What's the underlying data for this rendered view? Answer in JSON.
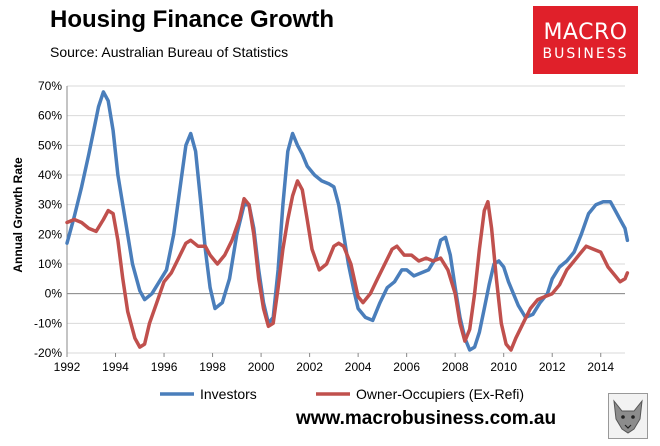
{
  "header": {
    "title": "Housing Finance Growth",
    "subtitle": "Source: Australian Bureau of Statistics"
  },
  "brand": {
    "line1": "MACRO",
    "line2": "BUSINESS",
    "website": "www.macrobusiness.com.au",
    "color": "#e0202a",
    "logo_icon": "wolf-icon"
  },
  "chart_data": {
    "type": "line",
    "title": "Housing Finance Growth",
    "ylabel": "Annual Growth Rate",
    "xlabel": "",
    "xlim": [
      1992,
      2015
    ],
    "ylim": [
      -20,
      70
    ],
    "x_ticks": [
      1992,
      1994,
      1996,
      1998,
      2000,
      2002,
      2004,
      2006,
      2008,
      2010,
      2012,
      2014
    ],
    "y_ticks": [
      "70%",
      "60%",
      "50%",
      "40%",
      "30%",
      "20%",
      "10%",
      "0%",
      "-10%",
      "-20%"
    ],
    "y_tick_values": [
      70,
      60,
      50,
      40,
      30,
      20,
      10,
      0,
      -10,
      -20
    ],
    "grid": "horizontal",
    "legend_position": "bottom",
    "series": [
      {
        "name": "Investors",
        "color": "#4a7ebb",
        "points": [
          [
            1992.0,
            17
          ],
          [
            1992.3,
            26
          ],
          [
            1992.6,
            36
          ],
          [
            1992.9,
            47
          ],
          [
            1993.1,
            55
          ],
          [
            1993.3,
            63
          ],
          [
            1993.5,
            68
          ],
          [
            1993.7,
            65
          ],
          [
            1993.9,
            55
          ],
          [
            1994.1,
            40
          ],
          [
            1994.4,
            25
          ],
          [
            1994.7,
            10
          ],
          [
            1995.0,
            1
          ],
          [
            1995.2,
            -2
          ],
          [
            1995.5,
            0
          ],
          [
            1995.8,
            4
          ],
          [
            1996.1,
            8
          ],
          [
            1996.4,
            20
          ],
          [
            1996.7,
            38
          ],
          [
            1996.9,
            50
          ],
          [
            1997.1,
            54
          ],
          [
            1997.3,
            48
          ],
          [
            1997.5,
            32
          ],
          [
            1997.7,
            15
          ],
          [
            1997.9,
            2
          ],
          [
            1998.1,
            -5
          ],
          [
            1998.4,
            -3
          ],
          [
            1998.7,
            5
          ],
          [
            1999.0,
            20
          ],
          [
            1999.3,
            30
          ],
          [
            1999.5,
            30
          ],
          [
            1999.7,
            22
          ],
          [
            1999.9,
            8
          ],
          [
            2000.1,
            -3
          ],
          [
            2000.3,
            -10
          ],
          [
            2000.5,
            -8
          ],
          [
            2000.7,
            8
          ],
          [
            2000.9,
            30
          ],
          [
            2001.1,
            48
          ],
          [
            2001.3,
            54
          ],
          [
            2001.5,
            50
          ],
          [
            2001.7,
            47
          ],
          [
            2001.9,
            43
          ],
          [
            2002.2,
            40
          ],
          [
            2002.5,
            38
          ],
          [
            2002.8,
            37
          ],
          [
            2003.0,
            36
          ],
          [
            2003.2,
            30
          ],
          [
            2003.4,
            20
          ],
          [
            2003.6,
            10
          ],
          [
            2003.8,
            2
          ],
          [
            2004.0,
            -5
          ],
          [
            2004.3,
            -8
          ],
          [
            2004.6,
            -9
          ],
          [
            2004.9,
            -3
          ],
          [
            2005.2,
            2
          ],
          [
            2005.5,
            4
          ],
          [
            2005.8,
            8
          ],
          [
            2006.0,
            8
          ],
          [
            2006.3,
            6
          ],
          [
            2006.6,
            7
          ],
          [
            2006.9,
            8
          ],
          [
            2007.2,
            12
          ],
          [
            2007.4,
            18
          ],
          [
            2007.6,
            19
          ],
          [
            2007.8,
            13
          ],
          [
            2008.0,
            2
          ],
          [
            2008.2,
            -8
          ],
          [
            2008.4,
            -15
          ],
          [
            2008.6,
            -19
          ],
          [
            2008.8,
            -18
          ],
          [
            2009.0,
            -13
          ],
          [
            2009.2,
            -5
          ],
          [
            2009.4,
            3
          ],
          [
            2009.6,
            10
          ],
          [
            2009.8,
            11
          ],
          [
            2010.0,
            9
          ],
          [
            2010.2,
            4
          ],
          [
            2010.4,
            0
          ],
          [
            2010.6,
            -4
          ],
          [
            2010.9,
            -8
          ],
          [
            2011.2,
            -7
          ],
          [
            2011.5,
            -3
          ],
          [
            2011.8,
            0
          ],
          [
            2012.0,
            5
          ],
          [
            2012.3,
            9
          ],
          [
            2012.6,
            11
          ],
          [
            2012.9,
            14
          ],
          [
            2013.2,
            20
          ],
          [
            2013.5,
            27
          ],
          [
            2013.8,
            30
          ],
          [
            2014.1,
            31
          ],
          [
            2014.4,
            31
          ],
          [
            2014.6,
            28
          ],
          [
            2014.8,
            25
          ],
          [
            2015.0,
            22
          ],
          [
            2015.1,
            18
          ]
        ]
      },
      {
        "name": "Owner-Occupiers (Ex-Refi)",
        "color": "#c0504d",
        "points": [
          [
            1992.0,
            24
          ],
          [
            1992.3,
            25
          ],
          [
            1992.6,
            24
          ],
          [
            1992.9,
            22
          ],
          [
            1993.2,
            21
          ],
          [
            1993.5,
            25
          ],
          [
            1993.7,
            28
          ],
          [
            1993.9,
            27
          ],
          [
            1994.1,
            18
          ],
          [
            1994.3,
            5
          ],
          [
            1994.5,
            -6
          ],
          [
            1994.8,
            -15
          ],
          [
            1995.0,
            -18
          ],
          [
            1995.2,
            -17
          ],
          [
            1995.4,
            -10
          ],
          [
            1995.7,
            -3
          ],
          [
            1996.0,
            4
          ],
          [
            1996.3,
            7
          ],
          [
            1996.6,
            12
          ],
          [
            1996.9,
            17
          ],
          [
            1997.1,
            18
          ],
          [
            1997.4,
            16
          ],
          [
            1997.7,
            16
          ],
          [
            1997.9,
            13
          ],
          [
            1998.2,
            10
          ],
          [
            1998.5,
            13
          ],
          [
            1998.8,
            18
          ],
          [
            1999.1,
            25
          ],
          [
            1999.3,
            32
          ],
          [
            1999.5,
            30
          ],
          [
            1999.7,
            20
          ],
          [
            1999.9,
            5
          ],
          [
            2000.1,
            -5
          ],
          [
            2000.3,
            -11
          ],
          [
            2000.5,
            -10
          ],
          [
            2000.7,
            2
          ],
          [
            2000.9,
            15
          ],
          [
            2001.1,
            25
          ],
          [
            2001.3,
            33
          ],
          [
            2001.5,
            38
          ],
          [
            2001.7,
            35
          ],
          [
            2001.9,
            25
          ],
          [
            2002.1,
            15
          ],
          [
            2002.4,
            8
          ],
          [
            2002.7,
            10
          ],
          [
            2003.0,
            16
          ],
          [
            2003.2,
            17
          ],
          [
            2003.4,
            16
          ],
          [
            2003.7,
            10
          ],
          [
            2004.0,
            -1
          ],
          [
            2004.2,
            -3
          ],
          [
            2004.5,
            0
          ],
          [
            2004.8,
            5
          ],
          [
            2005.1,
            10
          ],
          [
            2005.4,
            15
          ],
          [
            2005.6,
            16
          ],
          [
            2005.9,
            13
          ],
          [
            2006.2,
            13
          ],
          [
            2006.5,
            11
          ],
          [
            2006.8,
            12
          ],
          [
            2007.1,
            11
          ],
          [
            2007.4,
            12
          ],
          [
            2007.7,
            8
          ],
          [
            2008.0,
            0
          ],
          [
            2008.2,
            -10
          ],
          [
            2008.4,
            -16
          ],
          [
            2008.6,
            -12
          ],
          [
            2008.8,
            0
          ],
          [
            2009.0,
            15
          ],
          [
            2009.2,
            28
          ],
          [
            2009.35,
            31
          ],
          [
            2009.5,
            22
          ],
          [
            2009.7,
            5
          ],
          [
            2009.9,
            -10
          ],
          [
            2010.1,
            -17
          ],
          [
            2010.3,
            -19
          ],
          [
            2010.5,
            -15
          ],
          [
            2010.8,
            -10
          ],
          [
            2011.1,
            -5
          ],
          [
            2011.4,
            -2
          ],
          [
            2011.7,
            -1
          ],
          [
            2012.0,
            0
          ],
          [
            2012.3,
            3
          ],
          [
            2012.6,
            8
          ],
          [
            2012.9,
            11
          ],
          [
            2013.2,
            14
          ],
          [
            2013.4,
            16
          ],
          [
            2013.7,
            15
          ],
          [
            2014.0,
            14
          ],
          [
            2014.3,
            9
          ],
          [
            2014.6,
            6
          ],
          [
            2014.8,
            4
          ],
          [
            2015.0,
            5
          ],
          [
            2015.1,
            7
          ]
        ]
      }
    ]
  }
}
